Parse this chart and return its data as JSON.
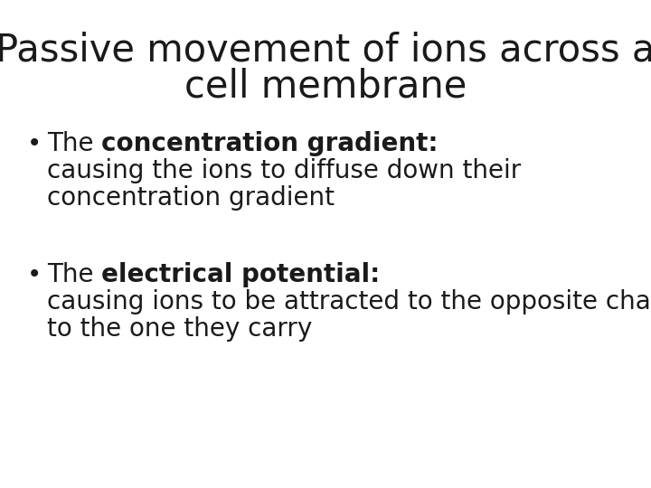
{
  "title_line1": "Passive movement of ions across a",
  "title_line2": "cell membrane",
  "title_fontsize": 30,
  "title_color": "#1a1a1a",
  "background_color": "#ffffff",
  "bullet1_normal_pre": "The ",
  "bullet1_bold": "concentration gradient:",
  "bullet1_line2": "causing the ions to diffuse down their",
  "bullet1_line3": "concentration gradient",
  "bullet2_normal_pre": "The ",
  "bullet2_bold": "electrical potential:",
  "bullet2_line2": "causing ions to be attracted to the opposite charge",
  "bullet2_line3": "to the one they carry",
  "body_fontsize": 20,
  "body_color": "#1a1a1a"
}
